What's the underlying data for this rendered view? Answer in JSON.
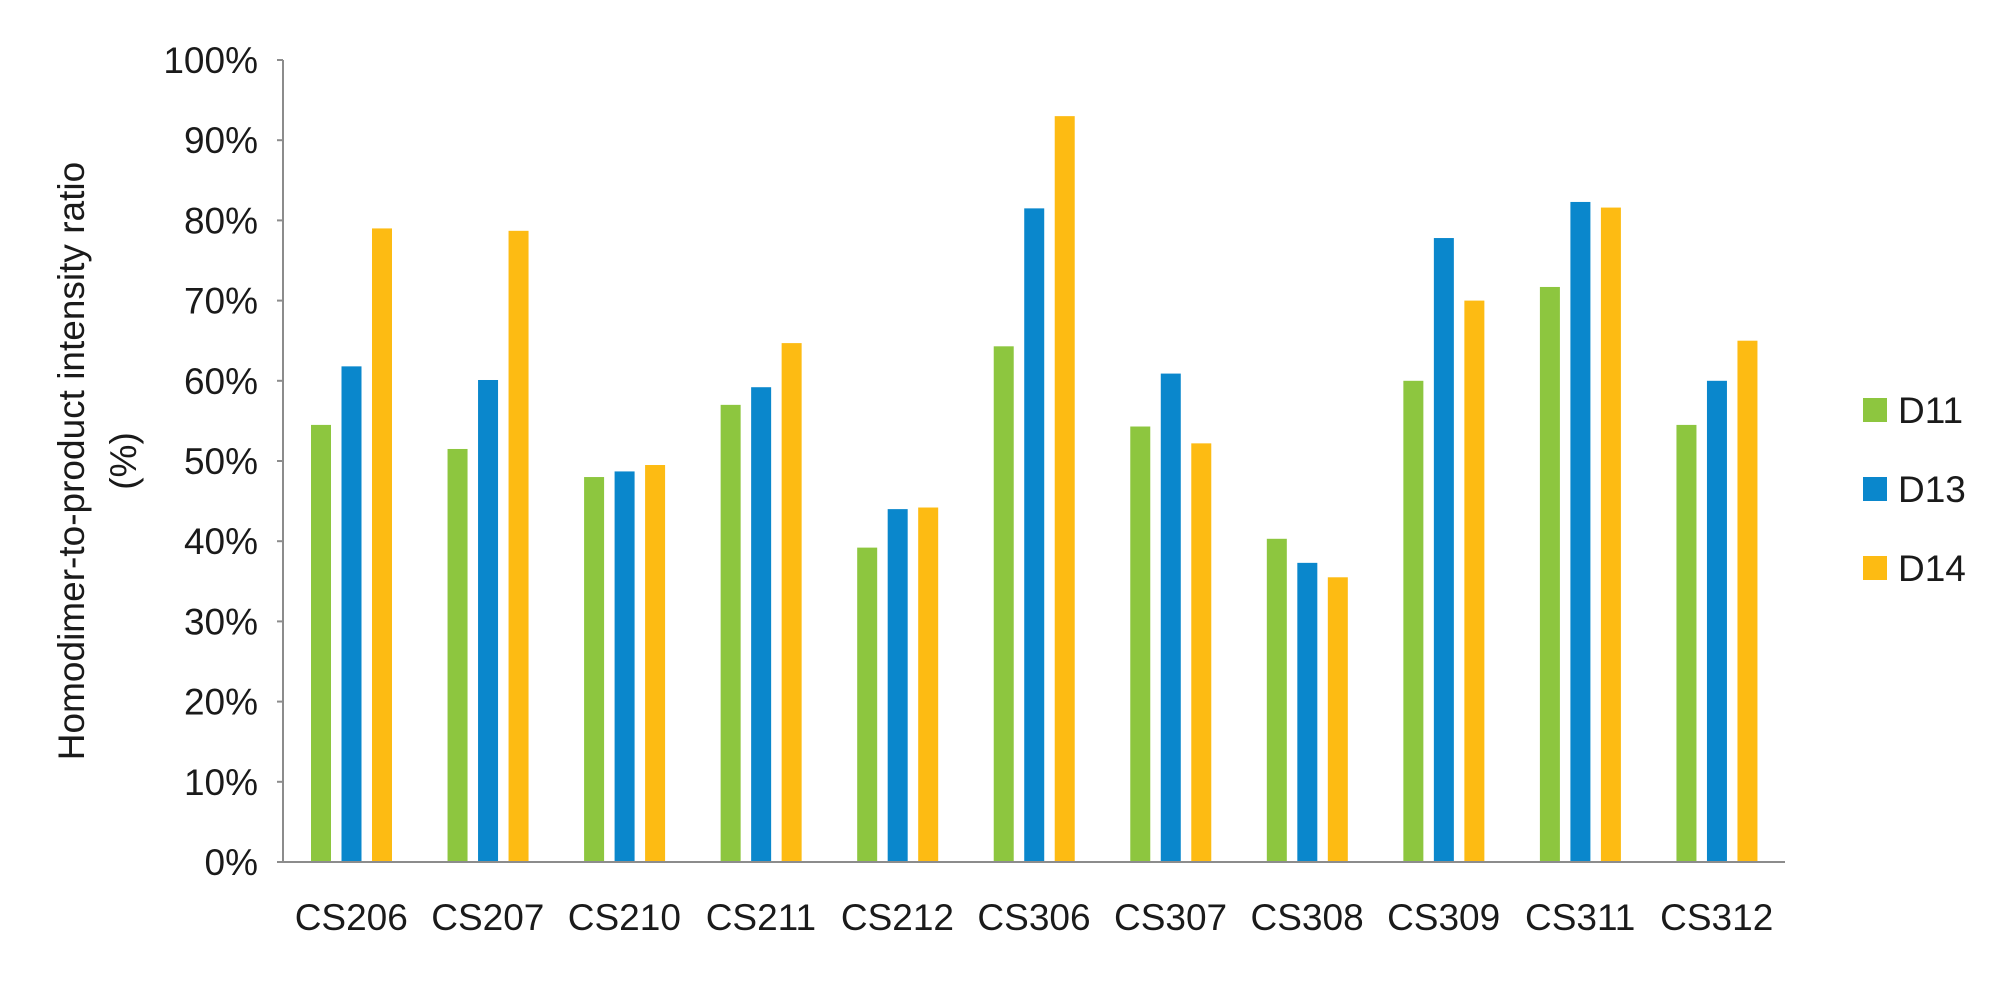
{
  "chart_data": {
    "type": "bar",
    "title": "",
    "xlabel": "",
    "ylabel": "Homodimer-to-product intensity ratio",
    "ylabel_line2": "(%)",
    "ylim": [
      0,
      100
    ],
    "ytick_step": 10,
    "ytick_suffix": "%",
    "y_ticks": [
      "0%",
      "10%",
      "20%",
      "30%",
      "40%",
      "50%",
      "60%",
      "70%",
      "80%",
      "90%",
      "100%"
    ],
    "grid": false,
    "legend_position": "right",
    "categories": [
      "CS206",
      "CS207",
      "CS210",
      "CS211",
      "CS212",
      "CS306",
      "CS307",
      "CS308",
      "CS309",
      "CS311",
      "CS312"
    ],
    "series": [
      {
        "name": "D11",
        "color": "#8dc63f",
        "values": [
          54.5,
          51.5,
          48,
          57,
          39.2,
          64.3,
          54.3,
          40.3,
          60,
          71.7,
          54.5
        ]
      },
      {
        "name": "D13",
        "color": "#0a87cc",
        "values": [
          61.8,
          60.1,
          48.7,
          59.2,
          44,
          81.5,
          60.9,
          37.3,
          77.8,
          82.3,
          60
        ]
      },
      {
        "name": "D14",
        "color": "#fdbb13",
        "values": [
          79,
          78.7,
          49.5,
          64.7,
          44.2,
          93,
          52.2,
          35.5,
          70,
          81.6,
          65
        ]
      }
    ]
  }
}
